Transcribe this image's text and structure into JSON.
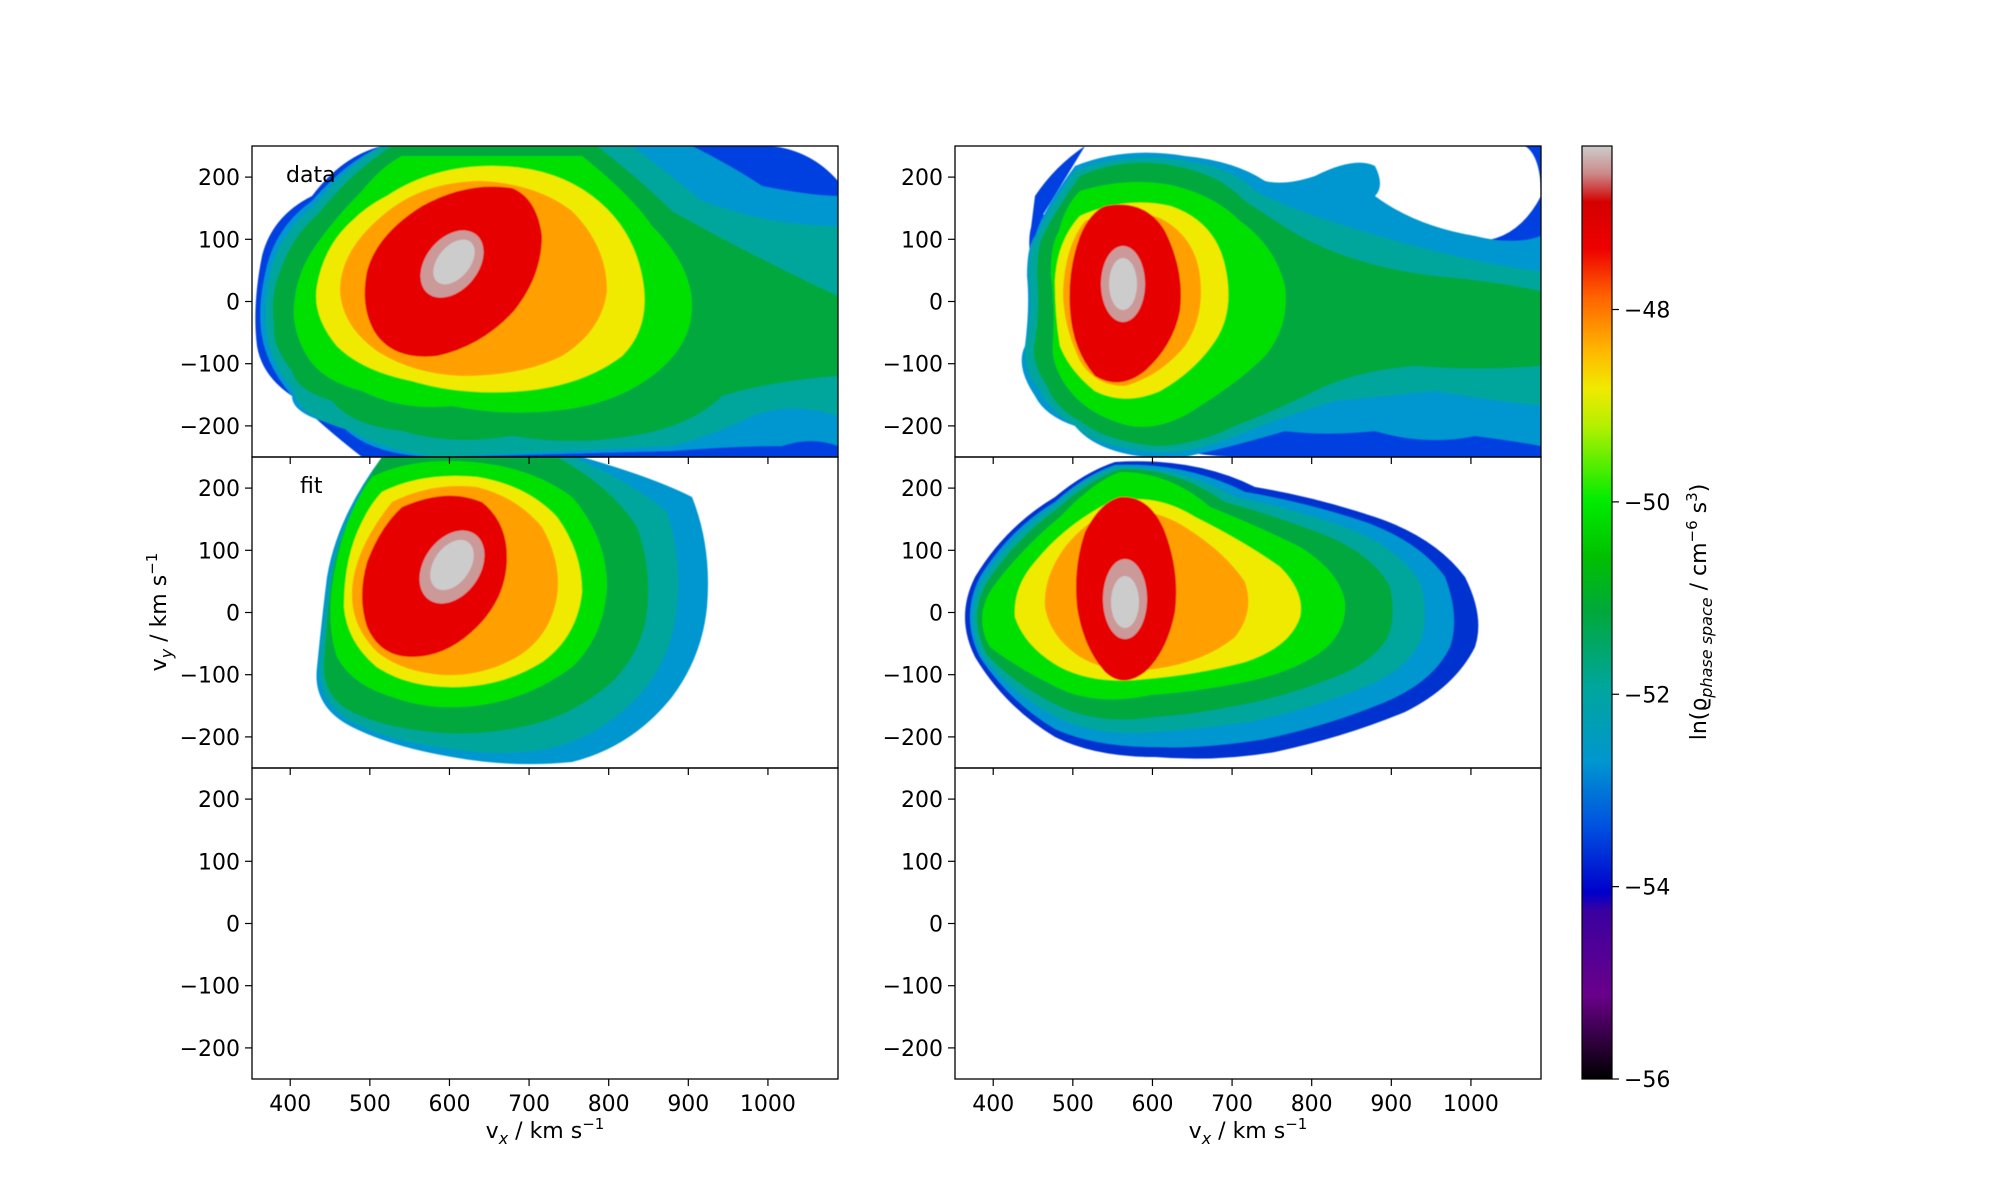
{
  "chart_data": {
    "type": "heatmap",
    "x": {
      "label": "v_x / km s^-1",
      "range": [
        352,
        1088
      ],
      "ticks": [
        400,
        500,
        600,
        700,
        800,
        900,
        1000
      ]
    },
    "y": {
      "label": "v_y / km s^-1",
      "range": [
        -250,
        250
      ],
      "ticks": [
        200,
        100,
        0,
        -100,
        -200
      ]
    },
    "colorbar": {
      "label": "ln(ϱ_phase space / cm^-6 s^3)",
      "range": [
        -56,
        -46.3
      ],
      "ticks": [
        -48,
        -50,
        -52,
        -54,
        -56
      ],
      "colormap": "nipy_spectral"
    },
    "panels": [
      {
        "column": 1,
        "row": 1,
        "label": "data",
        "peak": {
          "vx": 615,
          "vy": 65
        },
        "peak_value": -46.7
      },
      {
        "column": 2,
        "row": 1,
        "label": "",
        "peak": {
          "vx": 580,
          "vy": 20
        },
        "peak_value": -46.7
      },
      {
        "column": 1,
        "row": 2,
        "label": "fit",
        "peak": {
          "vx": 600,
          "vy": 75
        },
        "peak_value": -46.6
      },
      {
        "column": 2,
        "row": 2,
        "label": "",
        "peak": {
          "vx": 580,
          "vy": 10
        },
        "peak_value": -46.4
      },
      {
        "column": 1,
        "row": 3,
        "label": "",
        "empty": true
      },
      {
        "column": 2,
        "row": 3,
        "label": "",
        "empty": true
      }
    ],
    "tick_text": {
      "y": [
        "200",
        "100",
        "0",
        "−100",
        "−200"
      ],
      "x": [
        "400",
        "500",
        "600",
        "700",
        "800",
        "900",
        "1000"
      ],
      "cbar": [
        "−48",
        "−50",
        "−52",
        "−54",
        "−56"
      ]
    }
  }
}
